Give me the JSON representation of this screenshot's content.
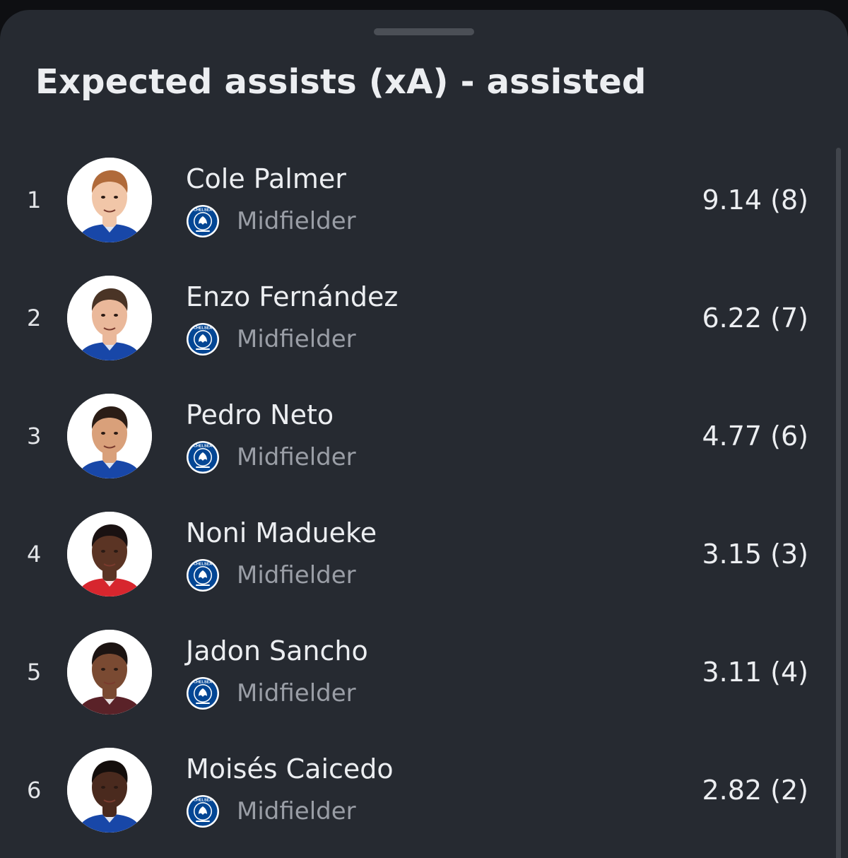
{
  "sheet": {
    "title": "Expected assists (xA) - assisted"
  },
  "players": [
    {
      "rank": "1",
      "name": "Cole Palmer",
      "position": "Midfielder",
      "stat": "9.14 (8)",
      "skin": "#f1c6a8",
      "hair": "#b06a3a",
      "shirt": "#1847a8"
    },
    {
      "rank": "2",
      "name": "Enzo Fernández",
      "position": "Midfielder",
      "stat": "6.22 (7)",
      "skin": "#eab89a",
      "hair": "#4a3426",
      "shirt": "#1847a8"
    },
    {
      "rank": "3",
      "name": "Pedro Neto",
      "position": "Midfielder",
      "stat": "4.77 (6)",
      "skin": "#d9a07a",
      "hair": "#2b1d16",
      "shirt": "#1847a8"
    },
    {
      "rank": "4",
      "name": "Noni Madueke",
      "position": "Midfielder",
      "stat": "3.15 (3)",
      "skin": "#5b3424",
      "hair": "#1a1212",
      "shirt": "#d7262e"
    },
    {
      "rank": "5",
      "name": "Jadon Sancho",
      "position": "Midfielder",
      "stat": "3.11 (4)",
      "skin": "#7a4a32",
      "hair": "#1c1412",
      "shirt": "#5a2228"
    },
    {
      "rank": "6",
      "name": "Moisés Caicedo",
      "position": "Midfielder",
      "stat": "2.82 (2)",
      "skin": "#4a2a1e",
      "hair": "#140e0c",
      "shirt": "#1847a8"
    }
  ],
  "club": {
    "badge_color": "#034694",
    "badge_text": "CHELSEA"
  }
}
